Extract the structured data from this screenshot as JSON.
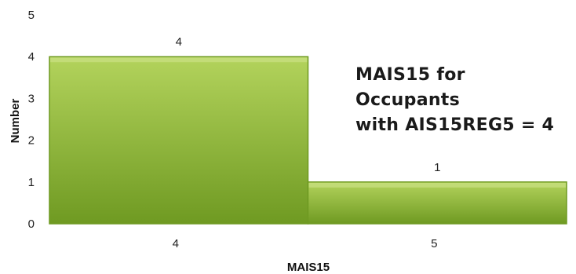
{
  "chart_data": {
    "type": "bar",
    "categories": [
      "4",
      "5"
    ],
    "values": [
      4,
      1
    ],
    "data_labels": [
      "4",
      "1"
    ],
    "title_lines": [
      "MAIS15 for Occupants",
      "with AIS15REG5 = 4"
    ],
    "xlabel": "MAIS15",
    "ylabel": "Number",
    "ylim": [
      0,
      5
    ],
    "yticks": [
      "0",
      "1",
      "2",
      "3",
      "4",
      "5"
    ],
    "grid": false,
    "bar_color": "#8db83a",
    "bar_color_light": "#b3d35c",
    "bar_color_dark": "#6f9a22",
    "legend": "none"
  }
}
